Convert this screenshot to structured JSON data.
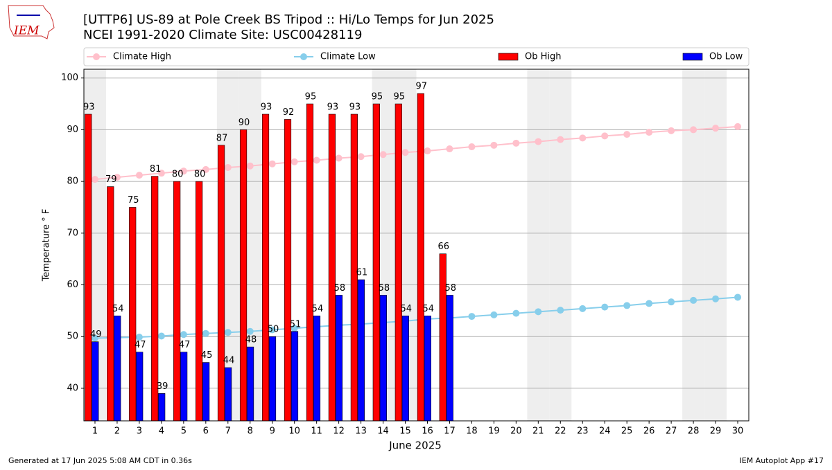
{
  "logo_text": "IEM",
  "footer": {
    "left": "Generated at 17 Jun 2025 5:08 AM CDT in 0.36s",
    "right": "IEM Autoplot App #17"
  },
  "chart_data": {
    "type": "bar",
    "title": "[UTTP6] US-89 at Pole Creek BS Tripod  :: Hi/Lo Temps for Jun 2025",
    "subtitle": "NCEI 1991-2020 Climate Site: USC00428119",
    "x_label": "June 2025",
    "y_label": "Temperature ° F",
    "categories": [
      "1",
      "2",
      "3",
      "4",
      "5",
      "6",
      "7",
      "8",
      "9",
      "10",
      "11",
      "12",
      "13",
      "14",
      "15",
      "16",
      "17",
      "18",
      "19",
      "20",
      "21",
      "22",
      "23",
      "24",
      "25",
      "26",
      "27",
      "28",
      "29",
      "30"
    ],
    "shaded": [
      "1",
      "7",
      "8",
      "14",
      "15",
      "21",
      "22",
      "28",
      "29"
    ],
    "ylim": [
      33.7,
      101.7
    ],
    "yticks": [
      40,
      50,
      60,
      70,
      80,
      90,
      100
    ],
    "grid": true,
    "legend": "upper",
    "series": [
      {
        "name": "Climate High",
        "type": "line",
        "color": "#ffc0cb",
        "values": [
          80.4,
          80.8,
          81.2,
          81.6,
          82.0,
          82.3,
          82.7,
          83.0,
          83.4,
          83.8,
          84.1,
          84.5,
          84.8,
          85.2,
          85.6,
          85.9,
          86.3,
          86.7,
          87.0,
          87.4,
          87.7,
          88.1,
          88.4,
          88.8,
          89.1,
          89.5,
          89.8,
          90.0,
          90.3,
          90.6
        ]
      },
      {
        "name": "Climate Low",
        "type": "line",
        "color": "#87ceeb",
        "values": [
          49.7,
          49.8,
          49.9,
          50.1,
          50.4,
          50.6,
          50.8,
          51.0,
          51.3,
          51.6,
          51.9,
          52.2,
          52.4,
          52.7,
          53.0,
          53.4,
          53.6,
          53.9,
          54.2,
          54.5,
          54.8,
          55.1,
          55.4,
          55.7,
          56.0,
          56.4,
          56.7,
          57.0,
          57.3,
          57.6
        ]
      },
      {
        "name": "Ob High",
        "type": "bar",
        "color": "#ff0000",
        "values": [
          93,
          79,
          75,
          81,
          80,
          80,
          87,
          90,
          93,
          92,
          95,
          93,
          93,
          95,
          95,
          97,
          66,
          null,
          null,
          null,
          null,
          null,
          null,
          null,
          null,
          null,
          null,
          null,
          null,
          null
        ]
      },
      {
        "name": "Ob Low",
        "type": "bar",
        "color": "#0000ff",
        "values": [
          49,
          54,
          47,
          39,
          47,
          45,
          44,
          48,
          50,
          51,
          54,
          58,
          61,
          58,
          54,
          54,
          58,
          null,
          null,
          null,
          null,
          null,
          null,
          null,
          null,
          null,
          null,
          null,
          null,
          null
        ]
      }
    ]
  }
}
